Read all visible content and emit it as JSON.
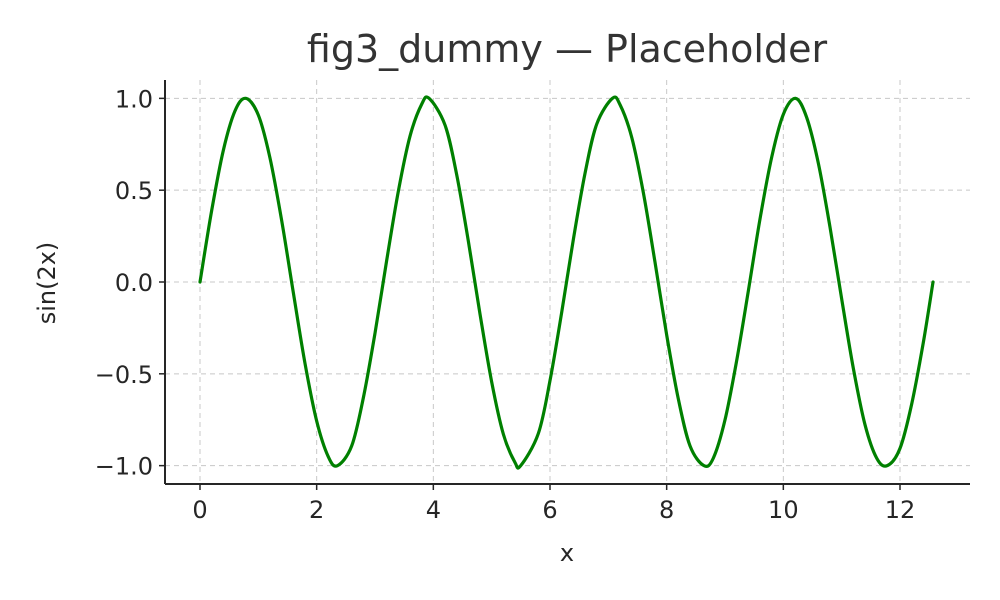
{
  "chart_data": {
    "type": "line",
    "title": "fig3_dummy — Placeholder",
    "xlabel": "x",
    "ylabel": "sin(2x)",
    "xlim": [
      -0.6,
      13.2
    ],
    "ylim": [
      -1.1,
      1.1
    ],
    "xticks": [
      0,
      2,
      4,
      6,
      8,
      10,
      12
    ],
    "xtick_labels": [
      "0",
      "2",
      "4",
      "6",
      "8",
      "10",
      "12"
    ],
    "yticks": [
      1.0,
      0.5,
      0.0,
      -0.5,
      -1.0
    ],
    "ytick_labels": [
      "1.0",
      "0.5",
      "0.0",
      "−0.5",
      "−1.0"
    ],
    "grid": true,
    "series": [
      {
        "color": "#008000",
        "x": [
          0.0,
          0.2,
          0.4,
          0.6,
          0.785,
          1.0,
          1.2,
          1.4,
          1.6,
          1.8,
          2.0,
          2.2,
          2.356,
          2.6,
          2.8,
          3.0,
          3.2,
          3.4,
          3.6,
          3.8,
          3.927,
          4.2,
          4.4,
          4.6,
          4.8,
          5.0,
          5.2,
          5.4,
          5.498,
          5.8,
          6.0,
          6.2,
          6.4,
          6.6,
          6.8,
          7.069,
          7.2,
          7.4,
          7.6,
          7.8,
          8.0,
          8.2,
          8.4,
          8.639,
          8.8,
          9.0,
          9.2,
          9.4,
          9.6,
          9.8,
          10.0,
          10.21,
          10.4,
          10.6,
          10.8,
          11.0,
          11.2,
          11.4,
          11.6,
          11.781,
          12.0,
          12.2,
          12.4,
          12.566
        ],
        "y": [
          0.0,
          0.389,
          0.717,
          0.932,
          1.0,
          0.909,
          0.675,
          0.335,
          -0.058,
          -0.443,
          -0.757,
          -0.952,
          -1.0,
          -0.893,
          -0.631,
          -0.279,
          0.117,
          0.494,
          0.794,
          0.968,
          1.0,
          0.855,
          0.585,
          0.223,
          -0.174,
          -0.544,
          -0.828,
          -0.983,
          -1.0,
          -0.825,
          -0.537,
          -0.166,
          0.231,
          0.591,
          0.859,
          1.0,
          0.966,
          0.789,
          0.487,
          0.108,
          -0.288,
          -0.637,
          -0.892,
          -1.0,
          -0.959,
          -0.751,
          -0.428,
          -0.049,
          0.343,
          0.679,
          0.913,
          1.0,
          0.896,
          0.647,
          0.299,
          -0.092,
          -0.47,
          -0.777,
          -0.959,
          -1.0,
          -0.906,
          -0.665,
          -0.329,
          0.0
        ]
      }
    ]
  }
}
